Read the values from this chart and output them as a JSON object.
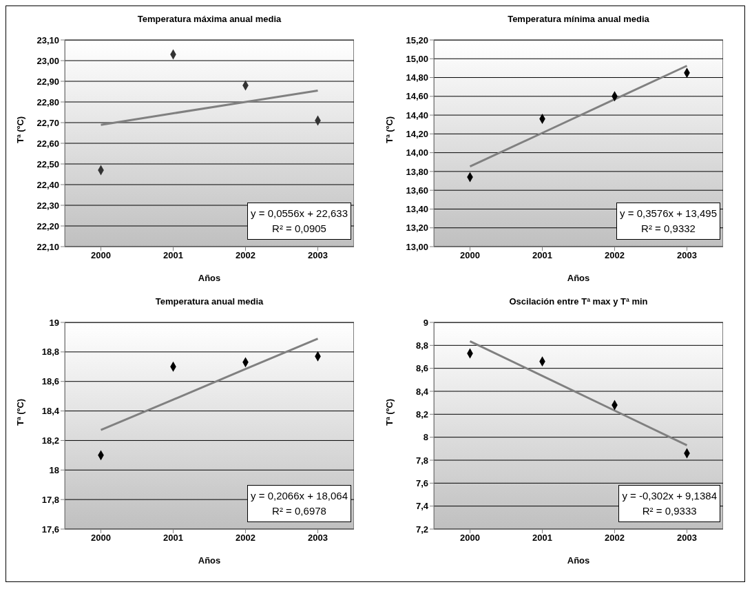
{
  "chart_data": [
    {
      "type": "scatter",
      "title": "Temperatura máxima anual media",
      "xlabel": "Años",
      "ylabel": "Tª (ºC)",
      "categories": [
        "2000",
        "2001",
        "2002",
        "2003"
      ],
      "series": [
        {
          "color": "#333333",
          "marker": "diamond",
          "values": [
            22.47,
            23.03,
            22.88,
            22.71
          ]
        },
        {
          "type": "line",
          "color": "#808080",
          "marker": "none",
          "values": [
            22.689,
            22.745,
            22.8,
            22.855
          ]
        }
      ],
      "ylim": [
        22.1,
        23.1
      ],
      "yticks": [
        {
          "value": 22.1,
          "label": "22,10"
        },
        {
          "value": 22.2,
          "label": "22,20"
        },
        {
          "value": 22.3,
          "label": "22,30"
        },
        {
          "value": 22.4,
          "label": "22,40"
        },
        {
          "value": 22.5,
          "label": "22,50"
        },
        {
          "value": 22.6,
          "label": "22,60"
        },
        {
          "value": 22.7,
          "label": "22,70"
        },
        {
          "value": 22.8,
          "label": "22,80"
        },
        {
          "value": 22.9,
          "label": "22,90"
        },
        {
          "value": 23.0,
          "label": "23,00"
        },
        {
          "value": 23.1,
          "label": "23,10"
        }
      ],
      "grid": "y",
      "annotations": [
        "y = 0,0556x + 22,633",
        "R² = 0,0905"
      ]
    },
    {
      "type": "scatter",
      "title": "Temperatura mínima anual media",
      "xlabel": "Años",
      "ylabel": "Tª (ºC)",
      "categories": [
        "2000",
        "2001",
        "2002",
        "2003"
      ],
      "series": [
        {
          "color": "#000000",
          "marker": "diamond",
          "values": [
            13.74,
            14.36,
            14.6,
            14.85
          ]
        },
        {
          "type": "line",
          "color": "#808080",
          "marker": "none",
          "values": [
            13.853,
            14.21,
            14.568,
            14.925
          ]
        }
      ],
      "ylim": [
        13.0,
        15.2
      ],
      "yticks": [
        {
          "value": 13.0,
          "label": "13,00"
        },
        {
          "value": 13.2,
          "label": "13,20"
        },
        {
          "value": 13.4,
          "label": "13,40"
        },
        {
          "value": 13.6,
          "label": "13,60"
        },
        {
          "value": 13.8,
          "label": "13,80"
        },
        {
          "value": 14.0,
          "label": "14,00"
        },
        {
          "value": 14.2,
          "label": "14,20"
        },
        {
          "value": 14.4,
          "label": "14,40"
        },
        {
          "value": 14.6,
          "label": "14,60"
        },
        {
          "value": 14.8,
          "label": "14,80"
        },
        {
          "value": 15.0,
          "label": "15,00"
        },
        {
          "value": 15.2,
          "label": "15,20"
        }
      ],
      "grid": "y",
      "annotations": [
        "y = 0,3576x + 13,495",
        "R² = 0,9332"
      ]
    },
    {
      "type": "scatter",
      "title": "Temperatura anual media",
      "xlabel": "Años",
      "ylabel": "Tª (ºC)",
      "categories": [
        "2000",
        "2001",
        "2002",
        "2003"
      ],
      "series": [
        {
          "color": "#000000",
          "marker": "diamond",
          "values": [
            18.1,
            18.7,
            18.73,
            18.77
          ]
        },
        {
          "type": "line",
          "color": "#808080",
          "marker": "none",
          "values": [
            18.271,
            18.477,
            18.684,
            18.89
          ]
        }
      ],
      "ylim": [
        17.6,
        19
      ],
      "yticks": [
        {
          "value": 17.6,
          "label": "17,6"
        },
        {
          "value": 17.8,
          "label": "17,8"
        },
        18,
        {
          "value": 18.2,
          "label": "18,2"
        },
        {
          "value": 18.4,
          "label": "18,4"
        },
        {
          "value": 18.6,
          "label": "18,6"
        },
        {
          "value": 18.8,
          "label": "18,8"
        },
        19
      ],
      "grid": "y",
      "annotations": [
        "y = 0,2066x + 18,064",
        "R² = 0,6978"
      ]
    },
    {
      "type": "scatter",
      "title": "Oscilación entre Tª max y Tª min",
      "xlabel": "Años",
      "ylabel": "Tª (ºC)",
      "categories": [
        "2000",
        "2001",
        "2002",
        "2003"
      ],
      "series": [
        {
          "color": "#000000",
          "marker": "diamond",
          "values": [
            8.73,
            8.66,
            8.28,
            7.86
          ]
        },
        {
          "type": "line",
          "color": "#808080",
          "marker": "none",
          "values": [
            8.836,
            8.534,
            8.232,
            7.93
          ]
        }
      ],
      "ylim": [
        7.2,
        9
      ],
      "yticks": [
        {
          "value": 7.2,
          "label": "7,2"
        },
        {
          "value": 7.4,
          "label": "7,4"
        },
        {
          "value": 7.6,
          "label": "7,6"
        },
        {
          "value": 7.8,
          "label": "7,8"
        },
        8,
        {
          "value": 8.2,
          "label": "8,2"
        },
        {
          "value": 8.4,
          "label": "8,4"
        },
        {
          "value": 8.6,
          "label": "8,6"
        },
        {
          "value": 8.8,
          "label": "8,8"
        },
        9
      ],
      "grid": "y",
      "annotations": [
        "y = -0,302x + 9,1384",
        "R² = 0,9333"
      ]
    }
  ]
}
